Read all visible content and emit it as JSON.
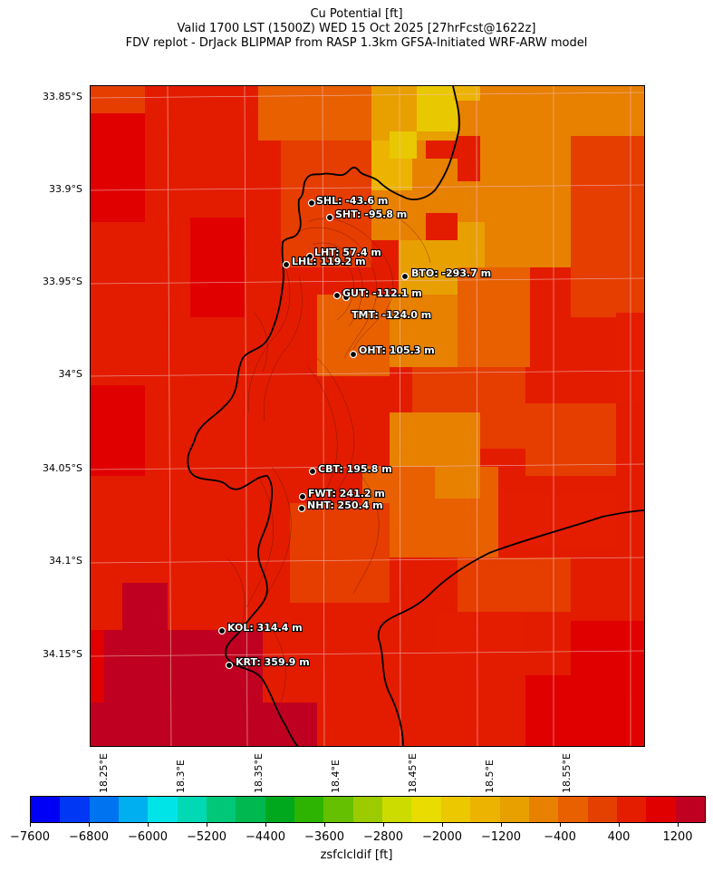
{
  "header": {
    "line1": "Cu Potential [ft]",
    "line2": "Valid 1700 LST (1500Z) WED 15 Oct 2025 [27hrFcst@1622z]",
    "line3": "FDV replot - DrJack BLIPMAP from RASP 1.3km GFSA-Initiated WRF-ARW model"
  },
  "axes": {
    "lat_labels": [
      "33.85°S",
      "33.9°S",
      "33.95°S",
      "34°S",
      "34.05°S",
      "34.1°S",
      "34.15°S"
    ],
    "lon_labels": [
      "18.25°E",
      "18.3°E",
      "18.35°E",
      "18.4°E",
      "18.45°E",
      "18.5°E",
      "18.55°E"
    ]
  },
  "stations": [
    {
      "code": "SHL",
      "label": "SHL: -43.6 m"
    },
    {
      "code": "SHT",
      "label": "SHT: -95.8 m"
    },
    {
      "code": "LHT",
      "label": "LHT: 57.4 m"
    },
    {
      "code": "LHL",
      "label": "LHL: 119.2 m"
    },
    {
      "code": "BTO",
      "label": "BTO: -293.7 m"
    },
    {
      "code": "GUT",
      "label": "GUT: -112.1 m"
    },
    {
      "code": "TMT",
      "label": "TMT: -124.0 m"
    },
    {
      "code": "OHT",
      "label": "OHT: 105.3 m"
    },
    {
      "code": "CBT",
      "label": "CBT: 195.8 m"
    },
    {
      "code": "FWT",
      "label": "FWT: 241.2 m"
    },
    {
      "code": "NHT",
      "label": "NHT: 250.4 m"
    },
    {
      "code": "KOL",
      "label": "KOL: 314.4 m"
    },
    {
      "code": "KRT",
      "label": "KRT: 359.9 m"
    }
  ],
  "colorbar": {
    "label": "zsfclcldif [ft]",
    "tick_labels": [
      "−7600",
      "−6800",
      "−6000",
      "−5200",
      "−4400",
      "−3600",
      "−2800",
      "−2000",
      "−1200",
      "−400",
      "400",
      "1200"
    ],
    "colors": [
      "#0000f5",
      "#0037f5",
      "#0073f0",
      "#00aff0",
      "#00e4e8",
      "#00d9b4",
      "#00c878",
      "#00b850",
      "#00a81e",
      "#2cb400",
      "#64c000",
      "#9ccc00",
      "#ccdc00",
      "#e8dc00",
      "#ecc800",
      "#ecb400",
      "#e8a000",
      "#e88000",
      "#e86000",
      "#e44000",
      "#e41c00",
      "#e00000",
      "#c00020"
    ]
  },
  "map_colors": {
    "deep_red": "#c00020",
    "red": "#e31c00",
    "red_orange": "#e63d00",
    "orange": "#e86000",
    "light_orange": "#e88000",
    "amber": "#e8a000",
    "gold": "#ecb400",
    "yellow": "#e8c800"
  }
}
